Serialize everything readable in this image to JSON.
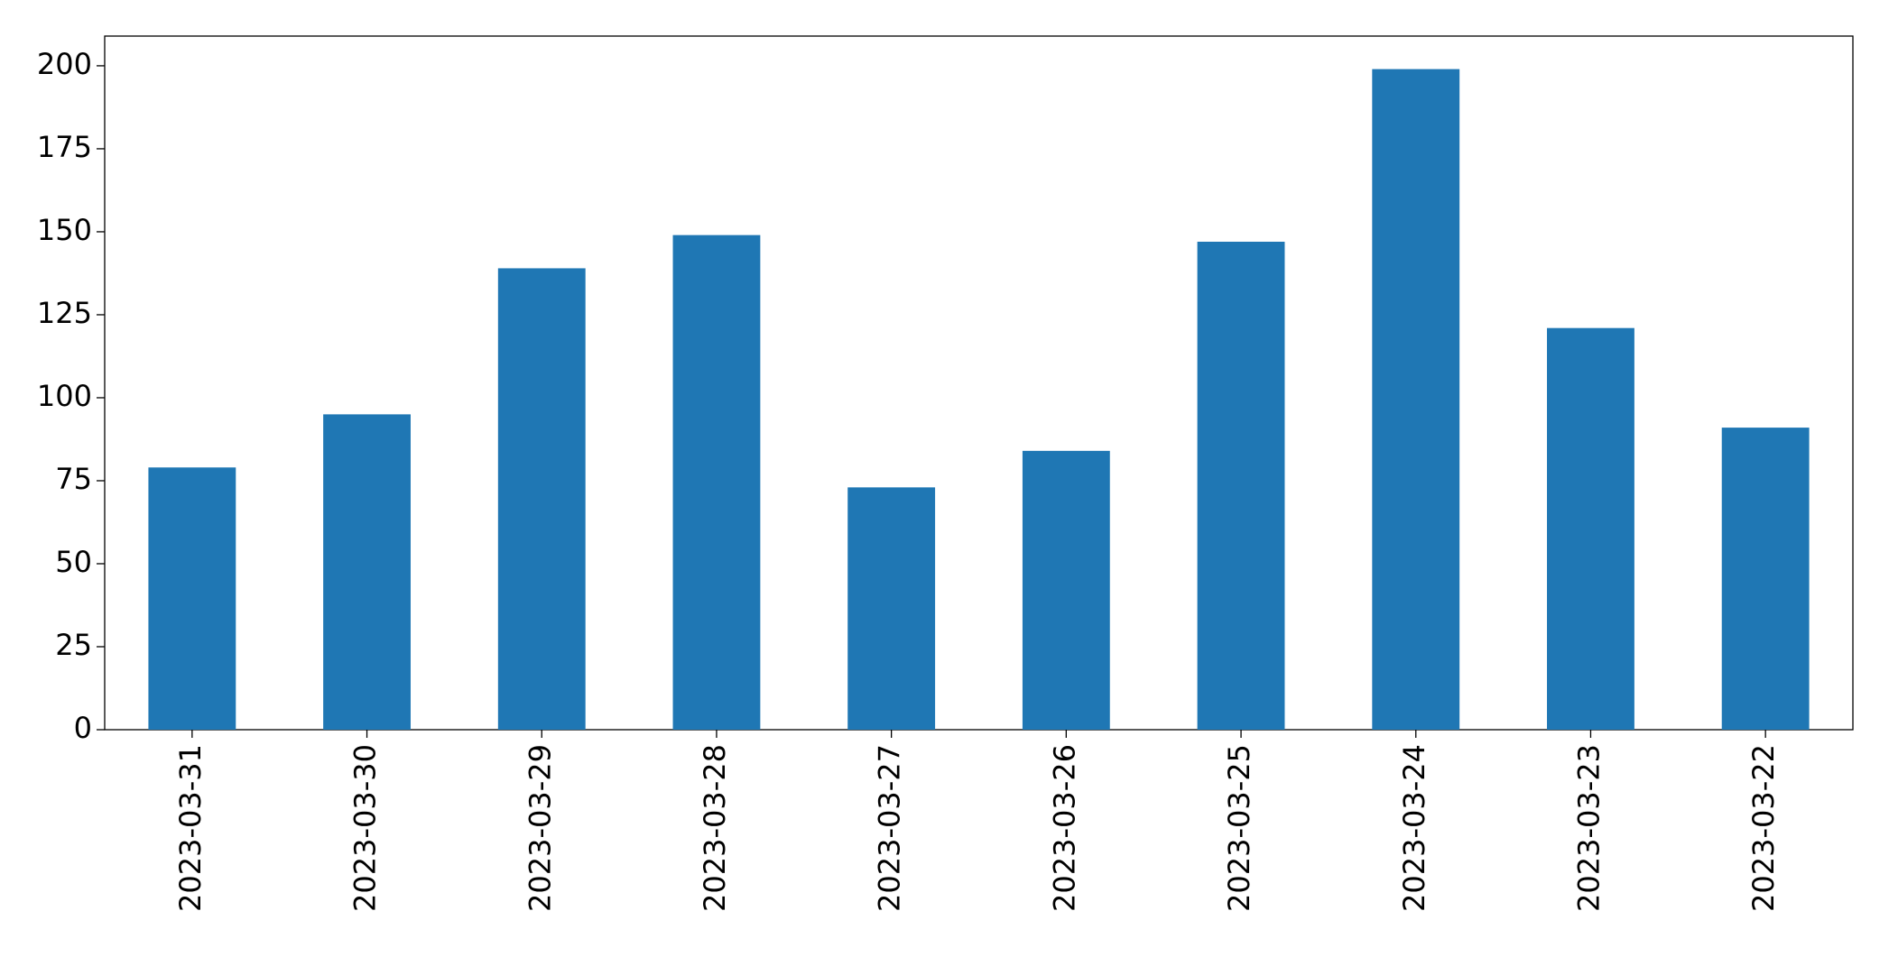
{
  "chart_data": {
    "type": "bar",
    "categories": [
      "2023-03-31",
      "2023-03-30",
      "2023-03-29",
      "2023-03-28",
      "2023-03-27",
      "2023-03-26",
      "2023-03-25",
      "2023-03-24",
      "2023-03-23",
      "2023-03-22"
    ],
    "values": [
      79,
      95,
      139,
      149,
      73,
      84,
      147,
      199,
      121,
      91
    ],
    "color": "#1f77b4",
    "ylim": [
      0,
      208.95
    ],
    "yticks": [
      0,
      25,
      50,
      75,
      100,
      125,
      150,
      175,
      200
    ],
    "grid": false
  }
}
